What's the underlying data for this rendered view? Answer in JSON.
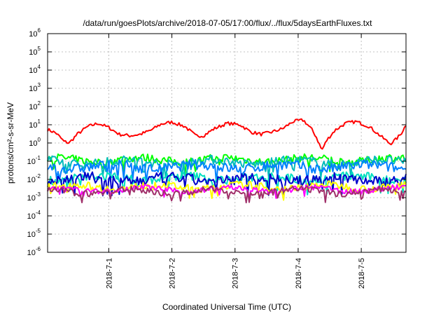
{
  "chart_data": {
    "type": "line",
    "title": "/data/run/goesPlots/archive/2018-07-05/17:00/flux/../flux/5daysEarthFluxes.txt",
    "xlabel": "Coordinated Universal Time (UTC)",
    "ylabel": "protons/cm²-s-sr-MeV",
    "y_scale": "log",
    "ylim": [
      1e-06,
      1000000.0
    ],
    "y_ticks": [
      {
        "base": "10",
        "exp": "-6"
      },
      {
        "base": "10",
        "exp": "-5"
      },
      {
        "base": "10",
        "exp": "-4"
      },
      {
        "base": "10",
        "exp": "-3"
      },
      {
        "base": "10",
        "exp": "-2"
      },
      {
        "base": "10",
        "exp": "-1"
      },
      {
        "base": "10",
        "exp": "0"
      },
      {
        "base": "10",
        "exp": "1"
      },
      {
        "base": "10",
        "exp": "2"
      },
      {
        "base": "10",
        "exp": "3"
      },
      {
        "base": "10",
        "exp": "4"
      },
      {
        "base": "10",
        "exp": "5"
      },
      {
        "base": "10",
        "exp": "6"
      }
    ],
    "xlim": [
      "2018-06-30T00:45",
      "2018-07-05T17:00"
    ],
    "x_ticks": [
      "2018-7-1",
      "2018-7-2",
      "2018-7-3",
      "2018-7-4",
      "2018-7-5"
    ],
    "grid": true,
    "series": [
      {
        "color": "#ff0000",
        "level": 8.0,
        "noise": 0.18,
        "points": [
          [
            "2018-06-30T00:45",
            5.5
          ],
          [
            "2018-06-30T04:00",
            3.5
          ],
          [
            "2018-06-30T07:00",
            1.2
          ],
          [
            "2018-06-30T09:00",
            1.0
          ],
          [
            "2018-06-30T12:00",
            3.0
          ],
          [
            "2018-06-30T16:00",
            8.0
          ],
          [
            "2018-06-30T20:00",
            12.0
          ],
          [
            "2018-07-01T00:00",
            7.0
          ],
          [
            "2018-07-01T04:00",
            3.0
          ],
          [
            "2018-07-01T08:00",
            2.5
          ],
          [
            "2018-07-01T12:00",
            3.0
          ],
          [
            "2018-07-01T16:00",
            5.0
          ],
          [
            "2018-07-01T20:00",
            11.0
          ],
          [
            "2018-07-02T00:00",
            14.0
          ],
          [
            "2018-07-02T05:00",
            8.0
          ],
          [
            "2018-07-02T09:00",
            2.5
          ],
          [
            "2018-07-02T12:00",
            2.5
          ],
          [
            "2018-07-02T16:00",
            6.0
          ],
          [
            "2018-07-02T21:00",
            12.0
          ],
          [
            "2018-07-03T02:00",
            10.0
          ],
          [
            "2018-07-03T06:00",
            4.0
          ],
          [
            "2018-07-03T10:00",
            3.0
          ],
          [
            "2018-07-03T14:00",
            4.0
          ],
          [
            "2018-07-03T18:00",
            6.0
          ],
          [
            "2018-07-03T22:00",
            15.0
          ],
          [
            "2018-07-04T02:00",
            18.0
          ],
          [
            "2018-07-04T05:00",
            6.0
          ],
          [
            "2018-07-04T07:00",
            2.0
          ],
          [
            "2018-07-04T09:00",
            0.4
          ],
          [
            "2018-07-04T11:00",
            1.5
          ],
          [
            "2018-07-04T14:00",
            5.0
          ],
          [
            "2018-07-04T18:00",
            12.0
          ],
          [
            "2018-07-04T22:00",
            15.0
          ],
          [
            "2018-07-05T03:00",
            8.0
          ],
          [
            "2018-07-05T08:00",
            2.0
          ],
          [
            "2018-07-05T11:00",
            0.9
          ],
          [
            "2018-07-05T13:00",
            1.5
          ],
          [
            "2018-07-05T15:00",
            3.0
          ],
          [
            "2018-07-05T17:00",
            10.0
          ]
        ]
      },
      {
        "color": "#00ff00",
        "level": 0.12,
        "noise": 0.45
      },
      {
        "color": "#00bbbb",
        "level": 0.09,
        "noise": 0.5
      },
      {
        "color": "#0080ff",
        "level": 0.05,
        "noise": 0.55
      },
      {
        "color": "#00e0c0",
        "level": 0.012,
        "noise": 0.5
      },
      {
        "color": "#0000cc",
        "level": 0.01,
        "noise": 0.6
      },
      {
        "color": "#ffff00",
        "level": 0.004,
        "noise": 0.4
      },
      {
        "color": "#ff00ff",
        "level": 0.0028,
        "noise": 0.3
      },
      {
        "color": "#a0306a",
        "level": 0.0022,
        "noise": 0.35
      }
    ]
  }
}
